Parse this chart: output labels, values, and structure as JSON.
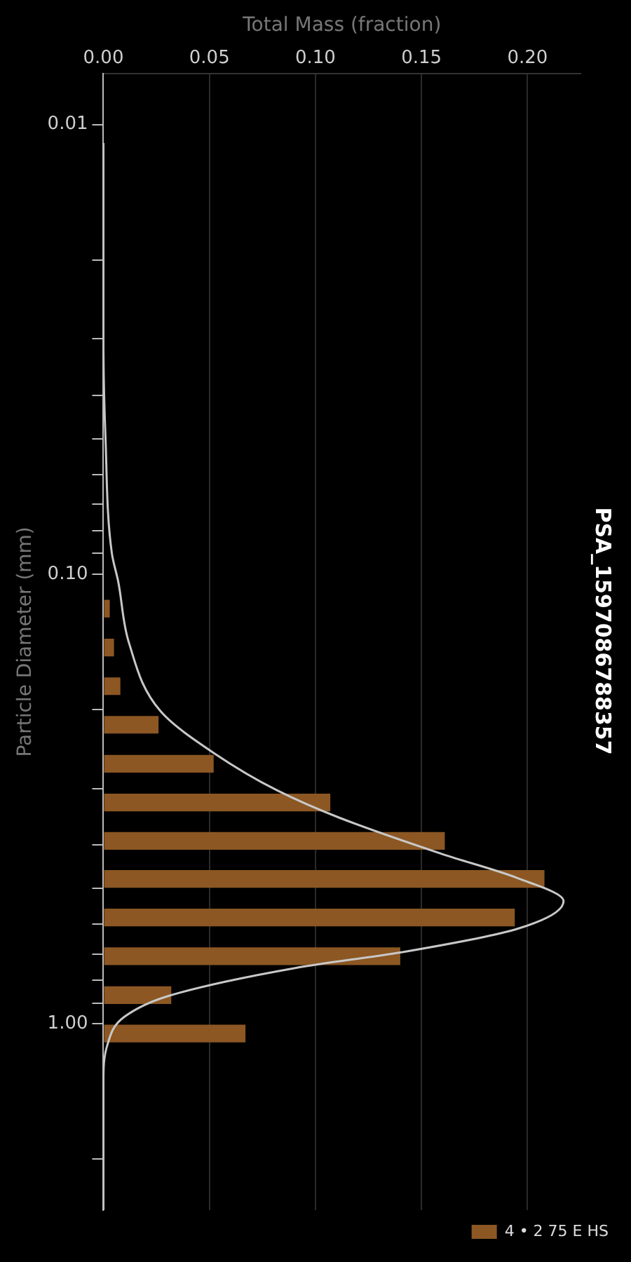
{
  "chart_data": {
    "type": "histogram",
    "orientation": "horizontal",
    "title": "PSA_1597086788357",
    "xlabel": "Total Mass (fraction)",
    "ylabel": "Particle Diameter (mm)",
    "log": "y",
    "bins": [
      0.108,
      0.132,
      0.161,
      0.196,
      0.239,
      0.292,
      0.356,
      0.432,
      0.526,
      0.641,
      0.783,
      0.955,
      1.16
    ],
    "series": [
      {
        "type": "histogram",
        "name": "4 • 2 75 E HS",
        "color": "#8c5723",
        "values": [
          0.003,
          0.005,
          0.008,
          0.026,
          0.052,
          0.107,
          0.161,
          0.208,
          0.194,
          0.14,
          0.032,
          0.067
        ]
      },
      {
        "type": "line",
        "color": "#c8c8c8",
        "x": [
          0.011,
          0.02,
          0.03,
          0.05,
          0.09,
          0.104,
          0.142,
          0.202,
          0.25,
          0.303,
          0.348,
          0.42,
          0.474,
          0.534,
          0.616,
          0.691,
          0.753,
          0.867,
          0.965,
          1.11,
          1.35,
          2.6
        ],
        "values": [
          0,
          0,
          0,
          0.001,
          0.004,
          0.007,
          0.012,
          0.027,
          0.052,
          0.082,
          0.111,
          0.16,
          0.195,
          0.217,
          0.195,
          0.143,
          0.09,
          0.031,
          0.01,
          0.002,
          0,
          0
        ]
      }
    ],
    "xlim": [
      0,
      0.225
    ],
    "xticks": [
      {
        "value": 0,
        "label": "0.00"
      },
      0.05,
      {
        "value": 0.1,
        "label": "0.10"
      },
      0.15,
      {
        "value": 0.2,
        "label": "0.20"
      }
    ],
    "ylim": [
      2.6,
      0.0077
    ],
    "yticks": [
      0.01,
      {
        "value": 0.02,
        "label": null
      },
      {
        "value": 0.03,
        "label": null
      },
      {
        "value": 0.04,
        "label": null
      },
      {
        "value": 0.05,
        "label": null
      },
      {
        "value": 0.06,
        "label": null
      },
      {
        "value": 0.07,
        "label": null
      },
      {
        "value": 0.08,
        "label": null
      },
      {
        "value": 0.09,
        "label": null
      },
      {
        "value": 0.1,
        "label": "0.10"
      },
      {
        "value": 0.2,
        "label": null
      },
      {
        "value": 0.3,
        "label": null
      },
      {
        "value": 0.4,
        "label": null
      },
      {
        "value": 0.5,
        "label": null
      },
      {
        "value": 0.6,
        "label": null
      },
      {
        "value": 0.7,
        "label": null
      },
      {
        "value": 0.8,
        "label": null
      },
      {
        "value": 0.9,
        "label": null
      },
      {
        "value": 1,
        "label": "1.00"
      },
      {
        "value": 2,
        "label": null
      }
    ],
    "grid": "x",
    "legend": "bottom right",
    "marker": "none"
  }
}
